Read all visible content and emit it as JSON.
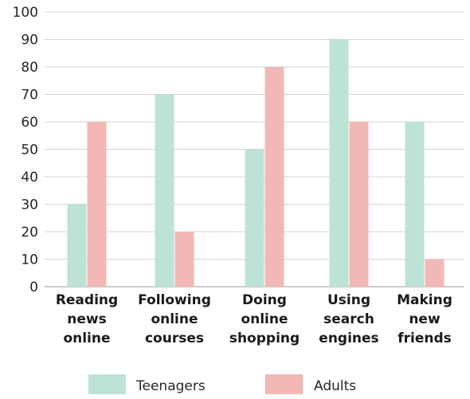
{
  "chart_data": {
    "type": "bar",
    "categories": [
      [
        "Reading",
        "news",
        "online"
      ],
      [
        "Following",
        "online",
        "courses"
      ],
      [
        "Doing",
        "online",
        "shopping"
      ],
      [
        "Using",
        "search",
        "engines"
      ],
      [
        "Making",
        "new",
        "friends"
      ]
    ],
    "series": [
      {
        "name": "Teenagers",
        "color": "#bde3d6",
        "values": [
          30,
          70,
          50,
          90,
          60
        ]
      },
      {
        "name": "Adults",
        "color": "#f2b8b5",
        "values": [
          60,
          20,
          80,
          60,
          10
        ]
      }
    ],
    "ylim": [
      0,
      100
    ],
    "yticks": [
      "0",
      "10",
      "20",
      "30",
      "40",
      "50",
      "60",
      "70",
      "80",
      "90",
      "100"
    ],
    "grid": true,
    "legend_position": "bottom"
  }
}
